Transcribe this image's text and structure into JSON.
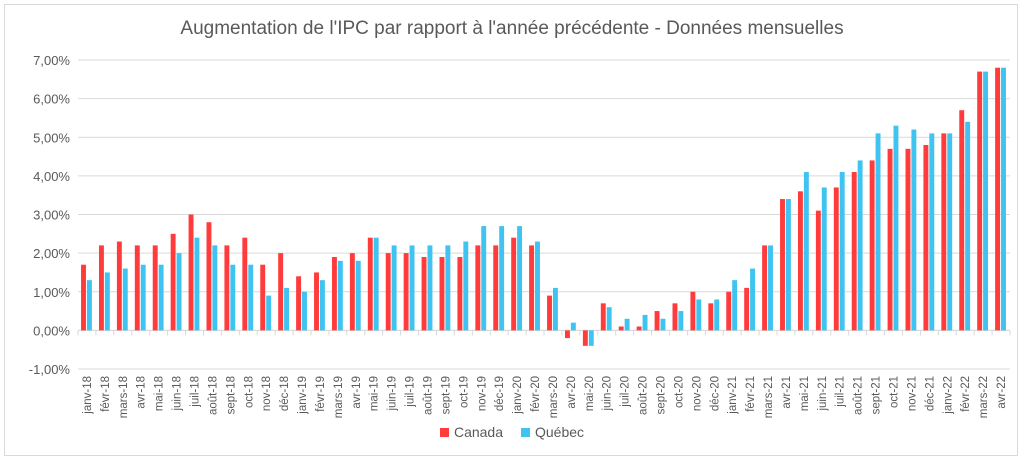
{
  "chart_data": {
    "type": "bar",
    "title": "Augmentation de l'IPC par rapport à l'année précédente - Données mensuelles",
    "xlabel": "",
    "ylabel": "",
    "ylim": [
      -1,
      7
    ],
    "yticks": [
      "-1,00%",
      "0,00%",
      "1,00%",
      "2,00%",
      "3,00%",
      "4,00%",
      "5,00%",
      "6,00%",
      "7,00%"
    ],
    "grid": true,
    "legend_position": "bottom",
    "categories": [
      "janv-18",
      "févr-18",
      "mars-18",
      "avr-18",
      "mai-18",
      "juin-18",
      "juil-18",
      "août-18",
      "sept-18",
      "oct-18",
      "nov-18",
      "déc-18",
      "janv-19",
      "févr-19",
      "mars-19",
      "avr-19",
      "mai-19",
      "juin-19",
      "juil-19",
      "août-19",
      "sept-19",
      "oct-19",
      "nov-19",
      "déc-19",
      "janv-20",
      "févr-20",
      "mars-20",
      "avr-20",
      "mai-20",
      "juin-20",
      "juil-20",
      "août-20",
      "sept-20",
      "oct-20",
      "nov-20",
      "déc-20",
      "janv-21",
      "févr-21",
      "mars-21",
      "avr-21",
      "mai-21",
      "juin-21",
      "juil-21",
      "août-21",
      "sept-21",
      "oct-21",
      "nov-21",
      "déc-21",
      "janv-22",
      "févr-22",
      "mars-22",
      "avr-22"
    ],
    "series": [
      {
        "name": "Canada",
        "color": "#ff3b3b",
        "values": [
          1.7,
          2.2,
          2.3,
          2.2,
          2.2,
          2.5,
          3.0,
          2.8,
          2.2,
          2.4,
          1.7,
          2.0,
          1.4,
          1.5,
          1.9,
          2.0,
          2.4,
          2.0,
          2.0,
          1.9,
          1.9,
          1.9,
          2.2,
          2.2,
          2.4,
          2.2,
          0.9,
          -0.2,
          -0.4,
          0.7,
          0.1,
          0.1,
          0.5,
          0.7,
          1.0,
          0.7,
          1.0,
          1.1,
          2.2,
          3.4,
          3.6,
          3.1,
          3.7,
          4.1,
          4.4,
          4.7,
          4.7,
          4.8,
          5.1,
          5.7,
          6.7,
          6.8
        ]
      },
      {
        "name": "Québec",
        "color": "#3fc3f0",
        "values": [
          1.3,
          1.5,
          1.6,
          1.7,
          1.7,
          2.0,
          2.4,
          2.2,
          1.7,
          1.7,
          0.9,
          1.1,
          1.0,
          1.3,
          1.8,
          1.8,
          2.4,
          2.2,
          2.2,
          2.2,
          2.2,
          2.3,
          2.7,
          2.7,
          2.7,
          2.3,
          1.1,
          0.2,
          -0.4,
          0.6,
          0.3,
          0.4,
          0.3,
          0.5,
          0.8,
          0.8,
          1.3,
          1.6,
          2.2,
          3.4,
          4.1,
          3.7,
          4.1,
          4.4,
          5.1,
          5.3,
          5.2,
          5.1,
          5.1,
          5.4,
          6.7,
          6.8
        ]
      }
    ]
  }
}
